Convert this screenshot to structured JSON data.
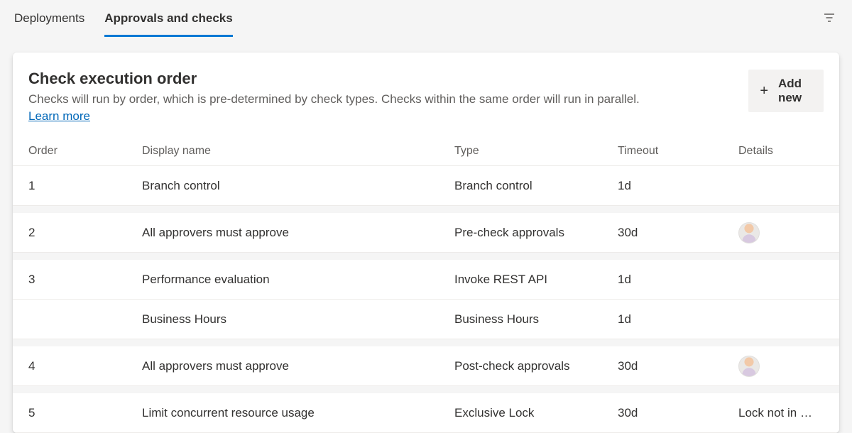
{
  "tabs": {
    "deployments": "Deployments",
    "approvals": "Approvals and checks",
    "activeIndex": 1
  },
  "header": {
    "title": "Check execution order",
    "subtitle": "Checks will run by order, which is pre-determined by check types. Checks within the same order will run in parallel.",
    "learn_more": "Learn more",
    "add_new": "Add new"
  },
  "columns": {
    "order": "Order",
    "name": "Display name",
    "type": "Type",
    "timeout": "Timeout",
    "details": "Details"
  },
  "rows": [
    {
      "order": "1",
      "name": "Branch control",
      "type": "Branch control",
      "timeout": "1d",
      "details": "",
      "hasAvatar": false,
      "gapAfter": true
    },
    {
      "order": "2",
      "name": "All approvers must approve",
      "type": "Pre-check approvals",
      "timeout": "30d",
      "details": "",
      "hasAvatar": true,
      "gapAfter": true
    },
    {
      "order": "3",
      "name": "Performance evaluation",
      "type": "Invoke REST API",
      "timeout": "1d",
      "details": "",
      "hasAvatar": false,
      "gapAfter": false
    },
    {
      "order": "",
      "name": "Business Hours",
      "type": "Business Hours",
      "timeout": "1d",
      "details": "",
      "hasAvatar": false,
      "gapAfter": true
    },
    {
      "order": "4",
      "name": "All approvers must approve",
      "type": "Post-check approvals",
      "timeout": "30d",
      "details": "",
      "hasAvatar": true,
      "gapAfter": true
    },
    {
      "order": "5",
      "name": "Limit concurrent resource usage",
      "type": "Exclusive Lock",
      "timeout": "30d",
      "details": "Lock not in …",
      "hasAvatar": false,
      "gapAfter": false
    }
  ],
  "colors": {
    "accent": "#0078d4",
    "link": "#0067b8",
    "text": "#323130",
    "muted": "#605e5c",
    "page_bg": "#f5f5f5",
    "card_bg": "#ffffff",
    "border": "#edebe9",
    "btn_bg": "#f3f2f1"
  }
}
